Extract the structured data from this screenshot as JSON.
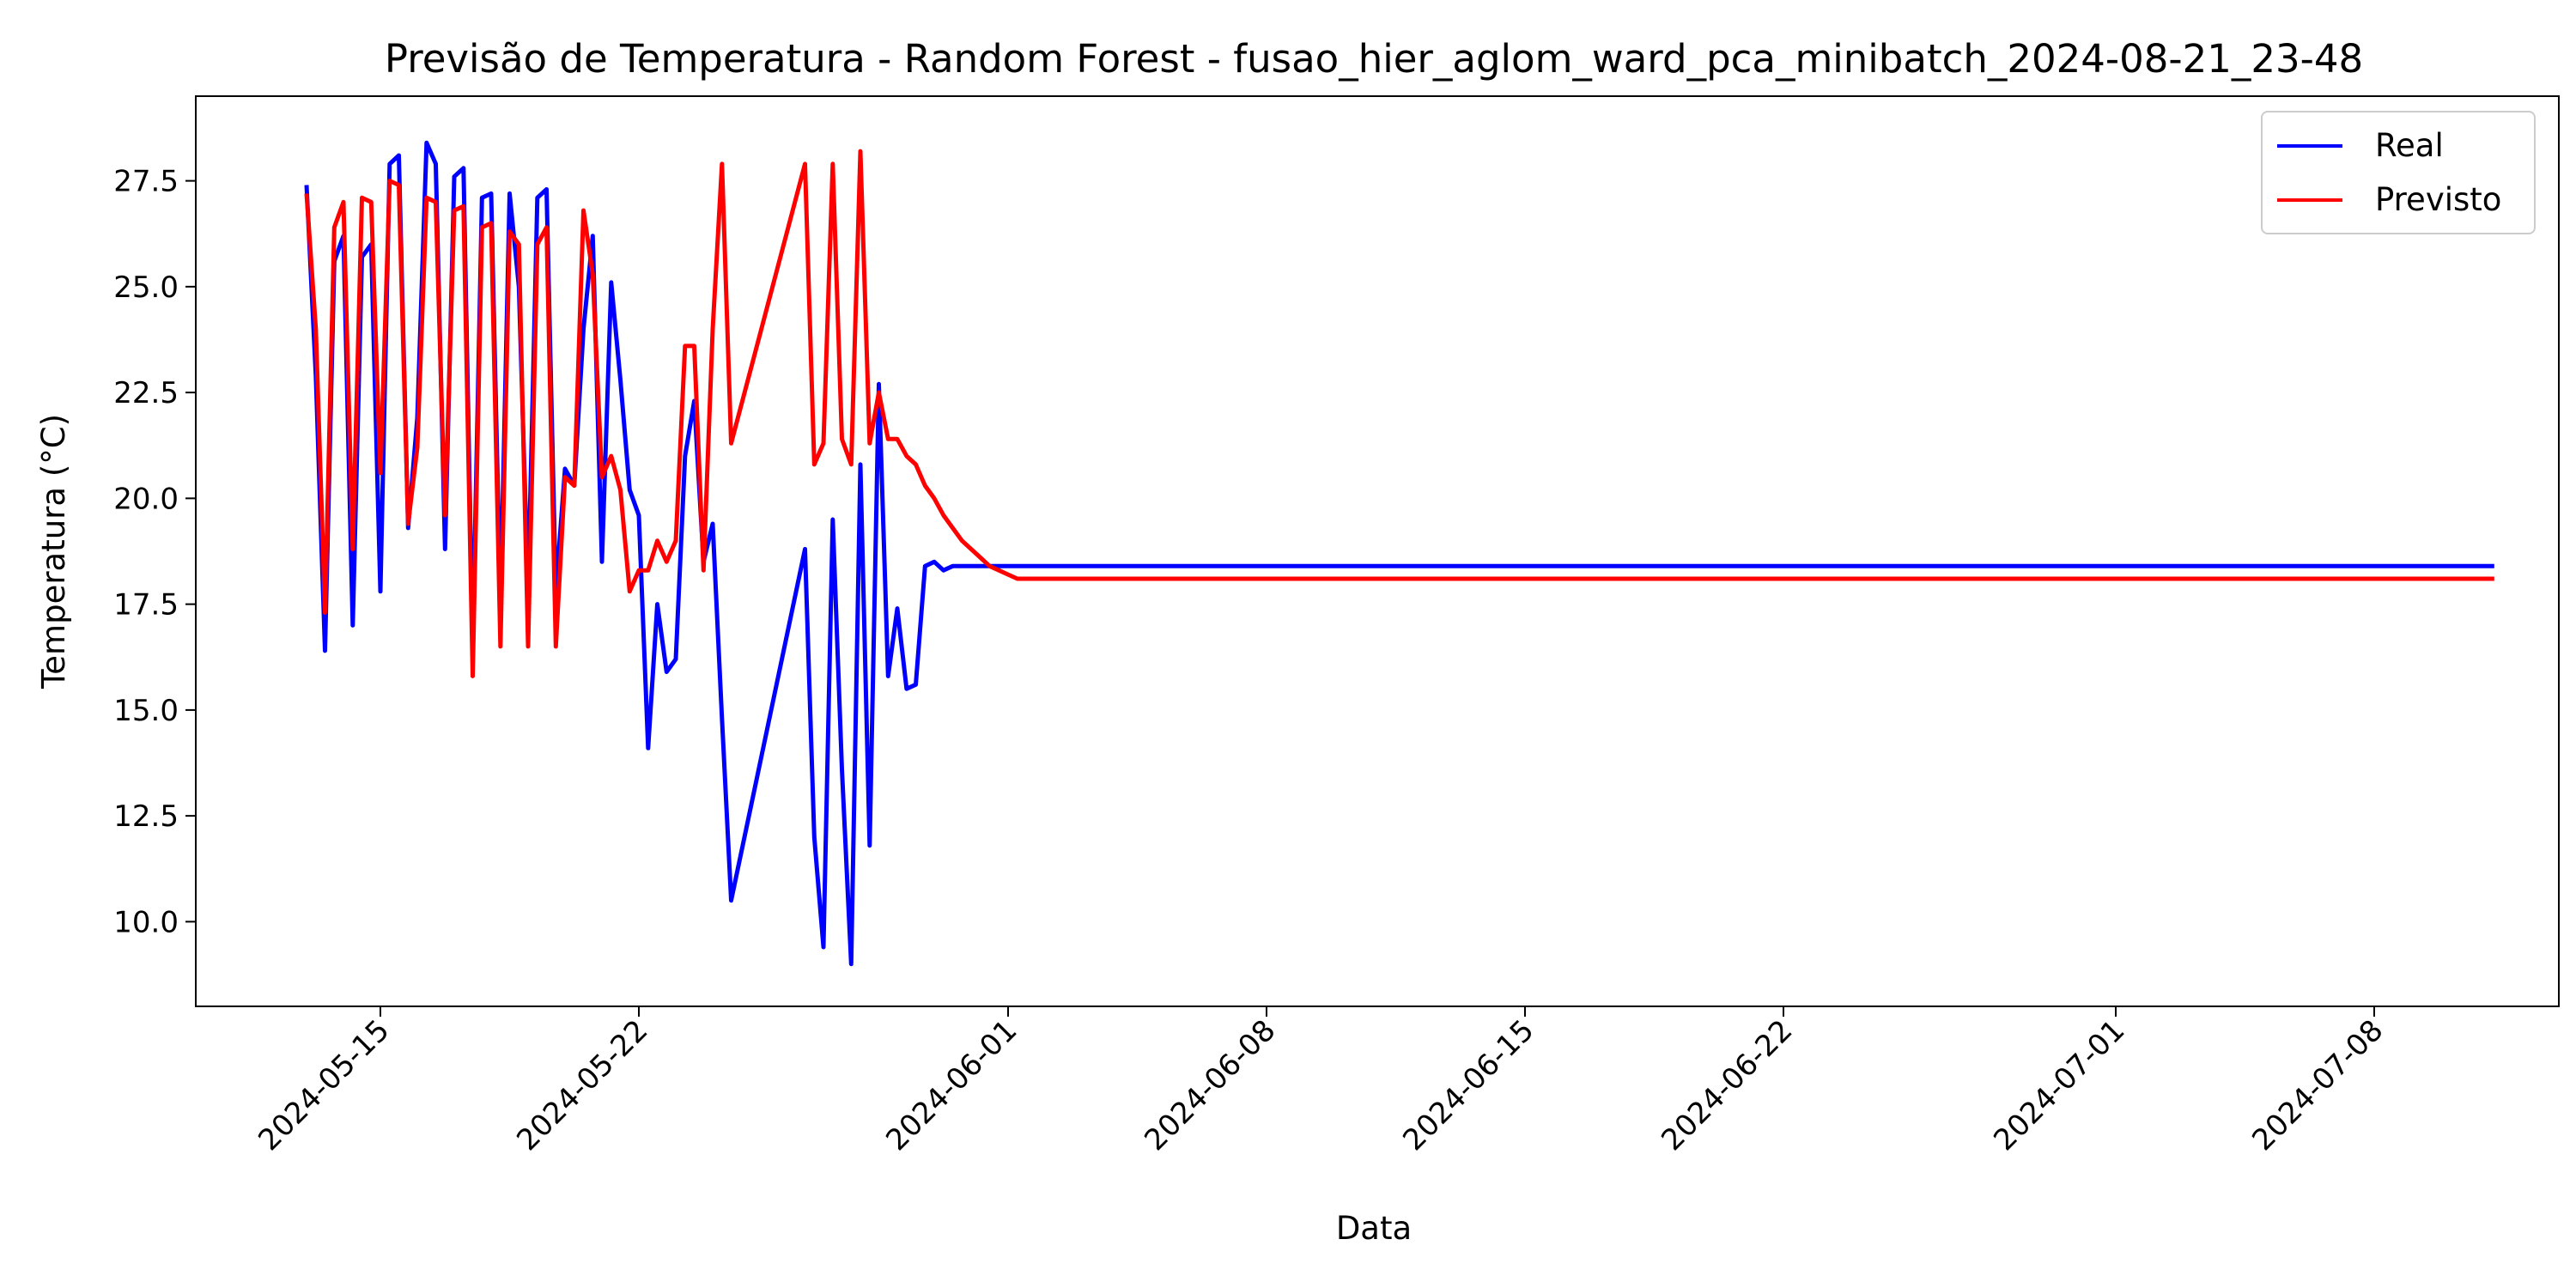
{
  "chart_data": {
    "type": "line",
    "title": "Previsão de Temperatura - Random Forest - fusao_hier_aglom_ward_pca_minibatch_2024-08-21_23-48",
    "xlabel": "Data",
    "ylabel": "Temperatura (°C)",
    "xlim": [
      "2024-05-10",
      "2024-07-13"
    ],
    "ylim": [
      8.0,
      29.5
    ],
    "x_ticks": [
      "2024-05-15",
      "2024-05-22",
      "2024-06-01",
      "2024-06-08",
      "2024-06-15",
      "2024-06-22",
      "2024-07-01",
      "2024-07-08"
    ],
    "y_ticks": [
      "10.0",
      "12.5",
      "15.0",
      "17.5",
      "20.0",
      "22.5",
      "25.0",
      "27.5"
    ],
    "grid": false,
    "legend_position": "top-right",
    "series": [
      {
        "name": "Real",
        "color": "#0000ff",
        "x": [
          "2024-05-13T00:00",
          "2024-05-13T06:00",
          "2024-05-13T12:00",
          "2024-05-13T18:00",
          "2024-05-14T00:00",
          "2024-05-14T06:00",
          "2024-05-14T12:00",
          "2024-05-14T18:00",
          "2024-05-15T00:00",
          "2024-05-15T06:00",
          "2024-05-15T12:00",
          "2024-05-15T18:00",
          "2024-05-16T00:00",
          "2024-05-16T06:00",
          "2024-05-16T12:00",
          "2024-05-16T18:00",
          "2024-05-17T00:00",
          "2024-05-17T06:00",
          "2024-05-17T12:00",
          "2024-05-17T18:00",
          "2024-05-18T00:00",
          "2024-05-18T06:00",
          "2024-05-18T12:00",
          "2024-05-18T18:00",
          "2024-05-19T00:00",
          "2024-05-19T06:00",
          "2024-05-19T12:00",
          "2024-05-19T18:00",
          "2024-05-20T00:00",
          "2024-05-20T06:00",
          "2024-05-20T12:00",
          "2024-05-20T18:00",
          "2024-05-21T00:00",
          "2024-05-21T06:00",
          "2024-05-21T12:00",
          "2024-05-21T18:00",
          "2024-05-22T00:00",
          "2024-05-22T06:00",
          "2024-05-22T12:00",
          "2024-05-22T18:00",
          "2024-05-23T00:00",
          "2024-05-23T06:00",
          "2024-05-23T12:00",
          "2024-05-23T18:00",
          "2024-05-24T00:00",
          "2024-05-24T06:00",
          "2024-05-24T12:00",
          "2024-05-26T12:00",
          "2024-05-26T18:00",
          "2024-05-27T00:00",
          "2024-05-27T06:00",
          "2024-05-27T12:00",
          "2024-05-27T18:00",
          "2024-05-28T00:00",
          "2024-05-28T06:00",
          "2024-05-28T12:00",
          "2024-05-28T18:00",
          "2024-05-29T00:00",
          "2024-05-29T06:00",
          "2024-05-29T12:00",
          "2024-05-29T18:00",
          "2024-05-30T00:00",
          "2024-05-30T06:00",
          "2024-05-30T12:00",
          "2024-05-30T18:00",
          "2024-05-31T00:00",
          "2024-05-31T06:00",
          "2024-05-31T12:00",
          "2024-05-31T18:00",
          "2024-06-01T00:00",
          "2024-06-01T06:00",
          "2024-06-01T12:00",
          "2024-06-01T18:00",
          "2024-06-02T00:00",
          "2024-06-02T06:00",
          "2024-07-11T00:00",
          "2024-07-11T06:00"
        ],
        "y": [
          27.4,
          22.9,
          16.4,
          25.6,
          26.2,
          17.0,
          25.7,
          26.0,
          17.8,
          27.9,
          28.1,
          19.3,
          21.9,
          28.4,
          27.9,
          18.8,
          27.6,
          27.8,
          16.5,
          27.1,
          27.2,
          17.5,
          27.2,
          25.0,
          17.8,
          27.1,
          27.3,
          17.8,
          20.7,
          20.3,
          24.0,
          26.2,
          18.5,
          25.1,
          22.8,
          20.2,
          19.6,
          14.1,
          17.5,
          15.9,
          16.2,
          21.0,
          22.3,
          18.5,
          19.4,
          14.8,
          10.5,
          18.8,
          12.0,
          9.4,
          19.5,
          13.6,
          9.0,
          20.8,
          11.8,
          22.7,
          15.8,
          17.4,
          15.5,
          15.6,
          18.4,
          18.5,
          18.3,
          18.4,
          18.4,
          18.4,
          18.4,
          18.4,
          18.4,
          18.4,
          18.4,
          18.4,
          18.4,
          18.4,
          18.4,
          18.4,
          18.4
        ]
      },
      {
        "name": "Previsto",
        "color": "#ff0000",
        "x": [
          "2024-05-13T00:00",
          "2024-05-13T06:00",
          "2024-05-13T12:00",
          "2024-05-13T18:00",
          "2024-05-14T00:00",
          "2024-05-14T06:00",
          "2024-05-14T12:00",
          "2024-05-14T18:00",
          "2024-05-15T00:00",
          "2024-05-15T06:00",
          "2024-05-15T12:00",
          "2024-05-15T18:00",
          "2024-05-16T00:00",
          "2024-05-16T06:00",
          "2024-05-16T12:00",
          "2024-05-16T18:00",
          "2024-05-17T00:00",
          "2024-05-17T06:00",
          "2024-05-17T12:00",
          "2024-05-17T18:00",
          "2024-05-18T00:00",
          "2024-05-18T06:00",
          "2024-05-18T12:00",
          "2024-05-18T18:00",
          "2024-05-19T00:00",
          "2024-05-19T06:00",
          "2024-05-19T12:00",
          "2024-05-19T18:00",
          "2024-05-20T00:00",
          "2024-05-20T06:00",
          "2024-05-20T12:00",
          "2024-05-20T18:00",
          "2024-05-21T00:00",
          "2024-05-21T06:00",
          "2024-05-21T12:00",
          "2024-05-21T18:00",
          "2024-05-22T00:00",
          "2024-05-22T06:00",
          "2024-05-22T12:00",
          "2024-05-22T18:00",
          "2024-05-23T00:00",
          "2024-05-23T06:00",
          "2024-05-23T12:00",
          "2024-05-23T18:00",
          "2024-05-24T00:00",
          "2024-05-24T06:00",
          "2024-05-24T12:00",
          "2024-05-26T12:00",
          "2024-05-26T18:00",
          "2024-05-27T00:00",
          "2024-05-27T06:00",
          "2024-05-27T12:00",
          "2024-05-27T18:00",
          "2024-05-28T00:00",
          "2024-05-28T06:00",
          "2024-05-28T12:00",
          "2024-05-28T18:00",
          "2024-05-29T00:00",
          "2024-05-29T06:00",
          "2024-05-29T12:00",
          "2024-05-29T18:00",
          "2024-05-30T00:00",
          "2024-05-30T06:00",
          "2024-05-30T12:00",
          "2024-05-30T18:00",
          "2024-05-31T00:00",
          "2024-05-31T06:00",
          "2024-05-31T12:00",
          "2024-05-31T18:00",
          "2024-06-01T00:00",
          "2024-06-01T06:00",
          "2024-06-01T12:00",
          "2024-06-01T18:00",
          "2024-06-02T00:00",
          "2024-06-02T06:00",
          "2024-07-11T00:00",
          "2024-07-11T06:00"
        ],
        "y": [
          27.2,
          24.0,
          17.3,
          26.4,
          27.0,
          18.8,
          27.1,
          27.0,
          20.6,
          27.5,
          27.4,
          19.4,
          21.2,
          27.1,
          27.0,
          19.6,
          26.8,
          26.9,
          15.8,
          26.4,
          26.5,
          16.5,
          26.3,
          26.0,
          16.5,
          26.0,
          26.4,
          16.5,
          20.5,
          20.3,
          26.8,
          25.3,
          20.5,
          21.0,
          20.2,
          17.8,
          18.3,
          18.3,
          19.0,
          18.5,
          19.0,
          23.6,
          23.6,
          18.3,
          24.0,
          27.9,
          21.3,
          27.9,
          20.8,
          21.3,
          27.9,
          21.4,
          20.8,
          28.2,
          21.3,
          22.5,
          21.4,
          21.4,
          21.0,
          20.8,
          20.3,
          20.0,
          19.6,
          19.3,
          19.0,
          18.8,
          18.6,
          18.4,
          18.3,
          18.2,
          18.1,
          18.1,
          18.1,
          18.1,
          18.1,
          18.1,
          18.1
        ]
      }
    ]
  }
}
